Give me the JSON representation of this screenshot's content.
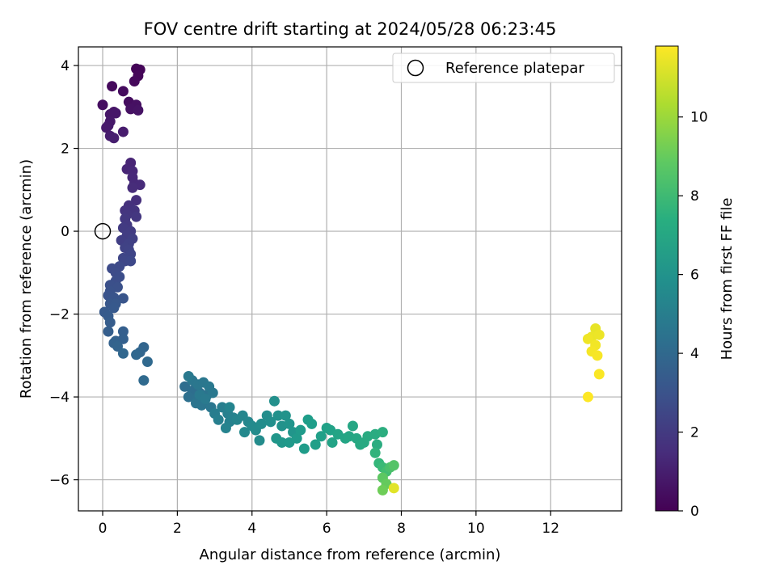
{
  "chart_data": {
    "type": "scatter",
    "title": "FOV centre drift starting at 2024/05/28 06:23:45",
    "xlabel": "Angular distance from reference (arcmin)",
    "ylabel": "Rotation from reference (arcmin)",
    "xlim": [
      -0.65,
      13.9
    ],
    "ylim": [
      -6.75,
      4.45
    ],
    "xticks": [
      0,
      2,
      4,
      6,
      8,
      10,
      12
    ],
    "yticks": [
      -6,
      -4,
      -2,
      0,
      2,
      4
    ],
    "grid": true,
    "legend": {
      "placement": "top-right",
      "entries": [
        "Reference platepar"
      ]
    },
    "reference_point": {
      "x": 0,
      "y": 0
    },
    "colorbar": {
      "label": "Hours from first FF file",
      "cmap": "viridis",
      "range": [
        0,
        11.8
      ],
      "ticks": [
        0,
        2,
        4,
        6,
        8,
        10
      ]
    },
    "points": [
      {
        "x": 0.9,
        "y": 3.92,
        "c": 0.1
      },
      {
        "x": 1.0,
        "y": 3.9,
        "c": 0.15
      },
      {
        "x": 0.95,
        "y": 3.75,
        "c": 0.2
      },
      {
        "x": 0.85,
        "y": 3.62,
        "c": 0.25
      },
      {
        "x": 0.25,
        "y": 3.5,
        "c": 0.3
      },
      {
        "x": 0.55,
        "y": 3.38,
        "c": 0.35
      },
      {
        "x": 0.7,
        "y": 3.12,
        "c": 0.4
      },
      {
        "x": 0.0,
        "y": 3.05,
        "c": 0.45
      },
      {
        "x": 0.9,
        "y": 3.05,
        "c": 0.5
      },
      {
        "x": 0.75,
        "y": 2.95,
        "c": 0.55
      },
      {
        "x": 0.95,
        "y": 2.92,
        "c": 0.6
      },
      {
        "x": 0.3,
        "y": 2.88,
        "c": 0.65
      },
      {
        "x": 0.2,
        "y": 2.82,
        "c": 0.7
      },
      {
        "x": 0.35,
        "y": 2.85,
        "c": 0.72
      },
      {
        "x": 0.2,
        "y": 2.65,
        "c": 0.78
      },
      {
        "x": 0.15,
        "y": 2.55,
        "c": 0.8
      },
      {
        "x": 0.1,
        "y": 2.5,
        "c": 0.85
      },
      {
        "x": 0.55,
        "y": 2.4,
        "c": 0.9
      },
      {
        "x": 0.2,
        "y": 2.3,
        "c": 0.95
      },
      {
        "x": 0.3,
        "y": 2.25,
        "c": 1.0
      },
      {
        "x": 0.75,
        "y": 1.65,
        "c": 1.2
      },
      {
        "x": 0.65,
        "y": 1.5,
        "c": 1.25
      },
      {
        "x": 0.8,
        "y": 1.45,
        "c": 1.3
      },
      {
        "x": 0.8,
        "y": 1.3,
        "c": 1.35
      },
      {
        "x": 0.85,
        "y": 1.15,
        "c": 1.4
      },
      {
        "x": 1.0,
        "y": 1.12,
        "c": 1.45
      },
      {
        "x": 0.8,
        "y": 1.05,
        "c": 1.5
      },
      {
        "x": 0.9,
        "y": 0.75,
        "c": 1.6
      },
      {
        "x": 0.7,
        "y": 0.62,
        "c": 1.65
      },
      {
        "x": 0.75,
        "y": 0.55,
        "c": 1.7
      },
      {
        "x": 0.6,
        "y": 0.5,
        "c": 1.75
      },
      {
        "x": 0.85,
        "y": 0.5,
        "c": 1.8
      },
      {
        "x": 0.65,
        "y": 0.4,
        "c": 1.85
      },
      {
        "x": 0.9,
        "y": 0.35,
        "c": 1.9
      },
      {
        "x": 0.6,
        "y": 0.3,
        "c": 1.95
      },
      {
        "x": 0.65,
        "y": 0.15,
        "c": 2.0
      },
      {
        "x": 0.55,
        "y": 0.08,
        "c": 2.05
      },
      {
        "x": 0.75,
        "y": 0.0,
        "c": 2.1
      },
      {
        "x": 0.65,
        "y": -0.1,
        "c": 2.15
      },
      {
        "x": 0.5,
        "y": -0.22,
        "c": 2.2
      },
      {
        "x": 0.8,
        "y": -0.18,
        "c": 2.25
      },
      {
        "x": 0.7,
        "y": -0.3,
        "c": 2.3
      },
      {
        "x": 0.6,
        "y": -0.4,
        "c": 2.35
      },
      {
        "x": 0.7,
        "y": -0.45,
        "c": 2.4
      },
      {
        "x": 0.75,
        "y": -0.55,
        "c": 2.45
      },
      {
        "x": 0.55,
        "y": -0.65,
        "c": 2.5
      },
      {
        "x": 0.6,
        "y": -0.72,
        "c": 2.55
      },
      {
        "x": 0.75,
        "y": -0.72,
        "c": 2.6
      },
      {
        "x": 0.45,
        "y": -0.85,
        "c": 2.65
      },
      {
        "x": 0.25,
        "y": -0.9,
        "c": 2.7
      },
      {
        "x": 0.35,
        "y": -1.0,
        "c": 2.75
      },
      {
        "x": 0.45,
        "y": -1.1,
        "c": 2.8
      },
      {
        "x": 0.35,
        "y": -1.2,
        "c": 2.85
      },
      {
        "x": 0.2,
        "y": -1.3,
        "c": 2.9
      },
      {
        "x": 0.4,
        "y": -1.35,
        "c": 2.95
      },
      {
        "x": 0.2,
        "y": -1.45,
        "c": 3.0
      },
      {
        "x": 0.15,
        "y": -1.55,
        "c": 3.05
      },
      {
        "x": 0.3,
        "y": -1.6,
        "c": 3.1
      },
      {
        "x": 0.55,
        "y": -1.62,
        "c": 3.15
      },
      {
        "x": 0.2,
        "y": -1.75,
        "c": 3.2
      },
      {
        "x": 0.35,
        "y": -1.75,
        "c": 3.25
      },
      {
        "x": 0.3,
        "y": -1.85,
        "c": 3.3
      },
      {
        "x": 0.05,
        "y": -1.95,
        "c": 3.35
      },
      {
        "x": 0.15,
        "y": -2.05,
        "c": 3.4
      },
      {
        "x": 0.2,
        "y": -2.2,
        "c": 3.45
      },
      {
        "x": 0.15,
        "y": -2.42,
        "c": 3.5
      },
      {
        "x": 0.55,
        "y": -2.42,
        "c": 3.55
      },
      {
        "x": 0.55,
        "y": -2.6,
        "c": 3.6
      },
      {
        "x": 0.35,
        "y": -2.65,
        "c": 3.65
      },
      {
        "x": 0.3,
        "y": -2.7,
        "c": 3.7
      },
      {
        "x": 0.4,
        "y": -2.78,
        "c": 3.75
      },
      {
        "x": 1.1,
        "y": -2.8,
        "c": 3.8
      },
      {
        "x": 1.0,
        "y": -2.92,
        "c": 3.85
      },
      {
        "x": 0.55,
        "y": -2.95,
        "c": 3.9
      },
      {
        "x": 0.9,
        "y": -2.98,
        "c": 3.95
      },
      {
        "x": 1.2,
        "y": -3.15,
        "c": 4.0
      },
      {
        "x": 1.1,
        "y": -3.6,
        "c": 4.05
      },
      {
        "x": 2.2,
        "y": -3.75,
        "c": 4.2
      },
      {
        "x": 2.4,
        "y": -3.85,
        "c": 4.25
      },
      {
        "x": 2.6,
        "y": -3.9,
        "c": 4.3
      },
      {
        "x": 2.3,
        "y": -4.0,
        "c": 4.35
      },
      {
        "x": 2.5,
        "y": -4.05,
        "c": 4.4
      },
      {
        "x": 2.7,
        "y": -4.1,
        "c": 4.45
      },
      {
        "x": 2.8,
        "y": -3.95,
        "c": 4.5
      },
      {
        "x": 2.5,
        "y": -4.15,
        "c": 4.55
      },
      {
        "x": 2.65,
        "y": -4.2,
        "c": 4.6
      },
      {
        "x": 2.9,
        "y": -4.25,
        "c": 4.62
      },
      {
        "x": 2.4,
        "y": -3.6,
        "c": 4.65
      },
      {
        "x": 2.55,
        "y": -3.7,
        "c": 4.68
      },
      {
        "x": 2.7,
        "y": -3.65,
        "c": 4.7
      },
      {
        "x": 2.85,
        "y": -3.75,
        "c": 4.72
      },
      {
        "x": 2.95,
        "y": -3.9,
        "c": 4.75
      },
      {
        "x": 2.3,
        "y": -3.5,
        "c": 4.78
      },
      {
        "x": 2.6,
        "y": -3.95,
        "c": 4.8
      },
      {
        "x": 2.75,
        "y": -4.05,
        "c": 4.82
      },
      {
        "x": 3.0,
        "y": -4.4,
        "c": 5.0
      },
      {
        "x": 3.2,
        "y": -4.25,
        "c": 5.05
      },
      {
        "x": 3.1,
        "y": -4.55,
        "c": 5.1
      },
      {
        "x": 3.35,
        "y": -4.4,
        "c": 5.15
      },
      {
        "x": 3.4,
        "y": -4.6,
        "c": 5.2
      },
      {
        "x": 3.5,
        "y": -4.5,
        "c": 5.25
      },
      {
        "x": 3.3,
        "y": -4.75,
        "c": 5.3
      },
      {
        "x": 3.4,
        "y": -4.25,
        "c": 5.35
      },
      {
        "x": 3.6,
        "y": -4.55,
        "c": 5.4
      },
      {
        "x": 3.75,
        "y": -4.45,
        "c": 5.45
      },
      {
        "x": 3.9,
        "y": -4.6,
        "c": 5.5
      },
      {
        "x": 3.8,
        "y": -4.85,
        "c": 5.55
      },
      {
        "x": 4.0,
        "y": -4.7,
        "c": 5.6
      },
      {
        "x": 4.1,
        "y": -4.8,
        "c": 5.65
      },
      {
        "x": 4.2,
        "y": -5.05,
        "c": 5.7
      },
      {
        "x": 4.25,
        "y": -4.65,
        "c": 5.75
      },
      {
        "x": 4.4,
        "y": -4.45,
        "c": 5.8
      },
      {
        "x": 4.5,
        "y": -4.6,
        "c": 5.85
      },
      {
        "x": 4.6,
        "y": -4.1,
        "c": 5.9
      },
      {
        "x": 4.7,
        "y": -4.45,
        "c": 5.95
      },
      {
        "x": 4.8,
        "y": -4.7,
        "c": 6.0
      },
      {
        "x": 4.9,
        "y": -4.45,
        "c": 6.05
      },
      {
        "x": 5.0,
        "y": -4.65,
        "c": 6.1
      },
      {
        "x": 5.1,
        "y": -4.85,
        "c": 6.15
      },
      {
        "x": 4.65,
        "y": -5.0,
        "c": 6.2
      },
      {
        "x": 4.8,
        "y": -5.1,
        "c": 6.25
      },
      {
        "x": 5.0,
        "y": -5.1,
        "c": 6.3
      },
      {
        "x": 5.2,
        "y": -5.0,
        "c": 6.35
      },
      {
        "x": 5.3,
        "y": -4.8,
        "c": 6.4
      },
      {
        "x": 5.4,
        "y": -5.25,
        "c": 6.45
      },
      {
        "x": 5.5,
        "y": -4.55,
        "c": 6.5
      },
      {
        "x": 5.6,
        "y": -4.65,
        "c": 6.55
      },
      {
        "x": 5.7,
        "y": -5.15,
        "c": 6.6
      },
      {
        "x": 5.85,
        "y": -4.95,
        "c": 6.65
      },
      {
        "x": 6.0,
        "y": -4.75,
        "c": 6.7
      },
      {
        "x": 6.1,
        "y": -4.8,
        "c": 6.75
      },
      {
        "x": 6.15,
        "y": -5.1,
        "c": 6.8
      },
      {
        "x": 6.3,
        "y": -4.9,
        "c": 6.85
      },
      {
        "x": 6.5,
        "y": -5.0,
        "c": 6.9
      },
      {
        "x": 6.6,
        "y": -4.95,
        "c": 6.95
      },
      {
        "x": 6.7,
        "y": -4.7,
        "c": 7.0
      },
      {
        "x": 6.8,
        "y": -5.0,
        "c": 7.05
      },
      {
        "x": 6.9,
        "y": -5.15,
        "c": 7.1
      },
      {
        "x": 7.0,
        "y": -5.1,
        "c": 7.15
      },
      {
        "x": 7.1,
        "y": -4.95,
        "c": 7.2
      },
      {
        "x": 7.3,
        "y": -4.9,
        "c": 7.25
      },
      {
        "x": 7.35,
        "y": -5.15,
        "c": 7.3
      },
      {
        "x": 7.5,
        "y": -4.85,
        "c": 7.35
      },
      {
        "x": 7.3,
        "y": -5.35,
        "c": 7.6
      },
      {
        "x": 7.4,
        "y": -5.6,
        "c": 7.8
      },
      {
        "x": 7.5,
        "y": -5.7,
        "c": 8.0
      },
      {
        "x": 7.6,
        "y": -5.8,
        "c": 8.2
      },
      {
        "x": 7.7,
        "y": -5.7,
        "c": 8.4
      },
      {
        "x": 7.8,
        "y": -5.65,
        "c": 8.6
      },
      {
        "x": 7.5,
        "y": -5.95,
        "c": 8.8
      },
      {
        "x": 7.6,
        "y": -6.1,
        "c": 9.0
      },
      {
        "x": 7.5,
        "y": -6.25,
        "c": 9.2
      },
      {
        "x": 7.8,
        "y": -6.2,
        "c": 11.3
      },
      {
        "x": 13.2,
        "y": -2.35,
        "c": 11.4
      },
      {
        "x": 13.1,
        "y": -2.55,
        "c": 11.45
      },
      {
        "x": 13.3,
        "y": -2.5,
        "c": 11.5
      },
      {
        "x": 13.0,
        "y": -2.6,
        "c": 11.55
      },
      {
        "x": 13.2,
        "y": -2.75,
        "c": 11.6
      },
      {
        "x": 13.1,
        "y": -2.9,
        "c": 11.65
      },
      {
        "x": 13.25,
        "y": -3.0,
        "c": 11.7
      },
      {
        "x": 13.3,
        "y": -3.45,
        "c": 11.75
      },
      {
        "x": 13.0,
        "y": -4.0,
        "c": 11.8
      }
    ]
  }
}
